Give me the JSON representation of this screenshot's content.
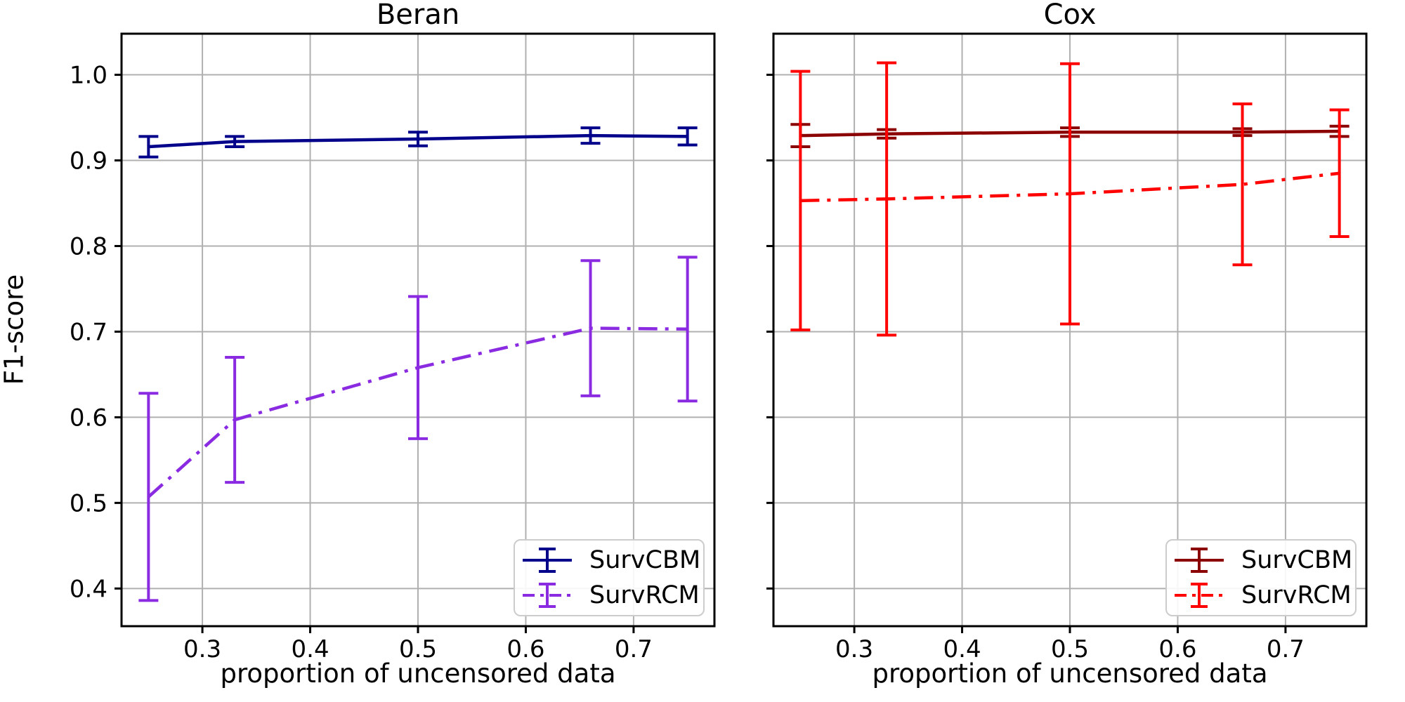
{
  "figure": {
    "background": "#ffffff",
    "grid_color": "#b0b0b0",
    "spine_color": "#000000",
    "text_color": "#000000"
  },
  "chart_data": [
    {
      "type": "line",
      "title": "Beran",
      "xlabel": "proportion of uncensored data",
      "ylabel": "F1-score",
      "grid": true,
      "legend_position": "lower right",
      "xlim": [
        0.225,
        0.775
      ],
      "ylim": [
        0.356,
        1.048
      ],
      "x": [
        0.25,
        0.33,
        0.5,
        0.66,
        0.75
      ],
      "xticks": {
        "values": [
          0.3,
          0.4,
          0.5,
          0.6,
          0.7
        ],
        "labels": [
          "0.3",
          "0.4",
          "0.5",
          "0.6",
          "0.7"
        ]
      },
      "yticks": {
        "values": [
          0.4,
          0.5,
          0.6,
          0.7,
          0.8,
          0.9,
          1.0
        ],
        "labels": [
          "0.4",
          "0.5",
          "0.6",
          "0.7",
          "0.8",
          "0.9",
          "1.0"
        ],
        "show_labels": true
      },
      "series": [
        {
          "name": "SurvCBM",
          "color": "#00008b",
          "linestyle": "solid",
          "marker": "errorbar",
          "values": [
            0.916,
            0.922,
            0.925,
            0.929,
            0.928
          ],
          "errors": [
            0.012,
            0.006,
            0.008,
            0.009,
            0.01
          ]
        },
        {
          "name": "SurvRCM",
          "color": "#8a2be2",
          "linestyle": "dashdot",
          "marker": "errorbar",
          "values": [
            0.507,
            0.597,
            0.658,
            0.704,
            0.703
          ],
          "errors": [
            0.121,
            0.073,
            0.083,
            0.079,
            0.084
          ]
        }
      ]
    },
    {
      "type": "line",
      "title": "Cox",
      "xlabel": "proportion of uncensored data",
      "ylabel": "",
      "grid": true,
      "legend_position": "lower right",
      "xlim": [
        0.225,
        0.775
      ],
      "ylim": [
        0.356,
        1.048
      ],
      "x": [
        0.25,
        0.33,
        0.5,
        0.66,
        0.75
      ],
      "xticks": {
        "values": [
          0.3,
          0.4,
          0.5,
          0.6,
          0.7
        ],
        "labels": [
          "0.3",
          "0.4",
          "0.5",
          "0.6",
          "0.7"
        ]
      },
      "yticks": {
        "values": [
          0.4,
          0.5,
          0.6,
          0.7,
          0.8,
          0.9,
          1.0
        ],
        "labels": [],
        "show_labels": false
      },
      "series": [
        {
          "name": "SurvCBM",
          "color": "#8b0000",
          "linestyle": "solid",
          "marker": "errorbar",
          "values": [
            0.929,
            0.931,
            0.933,
            0.933,
            0.934
          ],
          "errors": [
            0.013,
            0.005,
            0.005,
            0.004,
            0.006
          ]
        },
        {
          "name": "SurvRCM",
          "color": "#ff0000",
          "linestyle": "dashdot",
          "marker": "errorbar",
          "values": [
            0.853,
            0.855,
            0.861,
            0.872,
            0.885
          ],
          "errors": [
            0.151,
            0.159,
            0.152,
            0.094,
            0.074
          ]
        }
      ]
    }
  ]
}
